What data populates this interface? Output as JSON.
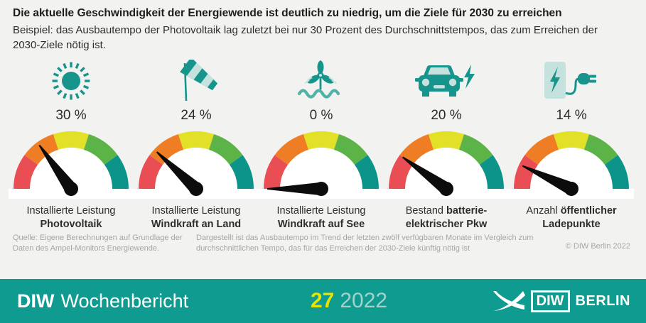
{
  "page": {
    "background": "#f2f2f0"
  },
  "header": {
    "title": "Die aktuelle Geschwindigkeit der Energiewende ist deutlich zu niedrig, um die Ziele für 2030 zu erreichen",
    "subtitle": "Beispiel: das Ausbautempo der Photovoltaik lag zuletzt bei nur 30 Prozent des Durchschnittstempos, das zum Erreichen der 2030-Ziele nötig ist."
  },
  "chart_data": {
    "type": "gauge",
    "title": "Die aktuelle Geschwindigkeit der Energiewende ist deutlich zu niedrig, um die Ziele für 2030 zu erreichen",
    "unit": "percent",
    "min": 0,
    "max": 100,
    "segment_colors": [
      "#ea4e55",
      "#ef7d23",
      "#e2e128",
      "#5cb347",
      "#0c948a"
    ],
    "needle_color": "#0c0c0c",
    "gauges": [
      {
        "icon": "sun-icon",
        "value": 30,
        "value_label": "30 %",
        "label_lines": [
          [
            {
              "t": "Installierte Leistung",
              "b": false
            }
          ],
          [
            {
              "t": "Photovoltaik",
              "b": true
            }
          ]
        ]
      },
      {
        "icon": "windsock-icon",
        "value": 24,
        "value_label": "24 %",
        "label_lines": [
          [
            {
              "t": "Installierte Leistung",
              "b": false
            }
          ],
          [
            {
              "t": "Windkraft an Land",
              "b": true
            }
          ]
        ]
      },
      {
        "icon": "offshore-wind-icon",
        "value": 0,
        "value_label": "0 %",
        "label_lines": [
          [
            {
              "t": "Installierte Leistung",
              "b": false
            }
          ],
          [
            {
              "t": "Windkraft auf See",
              "b": true
            }
          ]
        ]
      },
      {
        "icon": "ev-car-icon",
        "value": 20,
        "value_label": "20 %",
        "label_lines": [
          [
            {
              "t": "Bestand ",
              "b": false
            },
            {
              "t": "batterie-",
              "b": true
            }
          ],
          [
            {
              "t": "elektrischer Pkw",
              "b": true
            }
          ]
        ]
      },
      {
        "icon": "charging-point-icon",
        "value": 14,
        "value_label": "14 %",
        "label_lines": [
          [
            {
              "t": "Anzahl ",
              "b": false
            },
            {
              "t": "öffentlicher",
              "b": true
            }
          ],
          [
            {
              "t": "Ladepunkte",
              "b": true
            }
          ]
        ]
      }
    ]
  },
  "icon_colors": {
    "teal": "#17948b",
    "light": "#c5e2de",
    "wave": "#52b2a7"
  },
  "footnotes": {
    "source": "Quelle: Eigene Berechnungen auf Grundlage der Daten des Ampel-Monitors Energiewende.",
    "note": "Dargestellt ist das Ausbautempo im Trend der letzten zwölf verfügbaren Monate im Vergleich zum durchschnittlichen Tempo, das für das Erreichen der 2030-Ziele künftig nötig ist",
    "copyright": "© DIW Berlin 2022"
  },
  "footer": {
    "background": "#0f9b8f",
    "brand_bold": "DIW",
    "brand_regular": "Wochenbericht",
    "issue": "27",
    "year": "2022",
    "issue_color": "#e6e300",
    "year_color": "#9fd3cc",
    "logo_box_text": "DIW",
    "logo_suffix_text": "BERLIN"
  }
}
